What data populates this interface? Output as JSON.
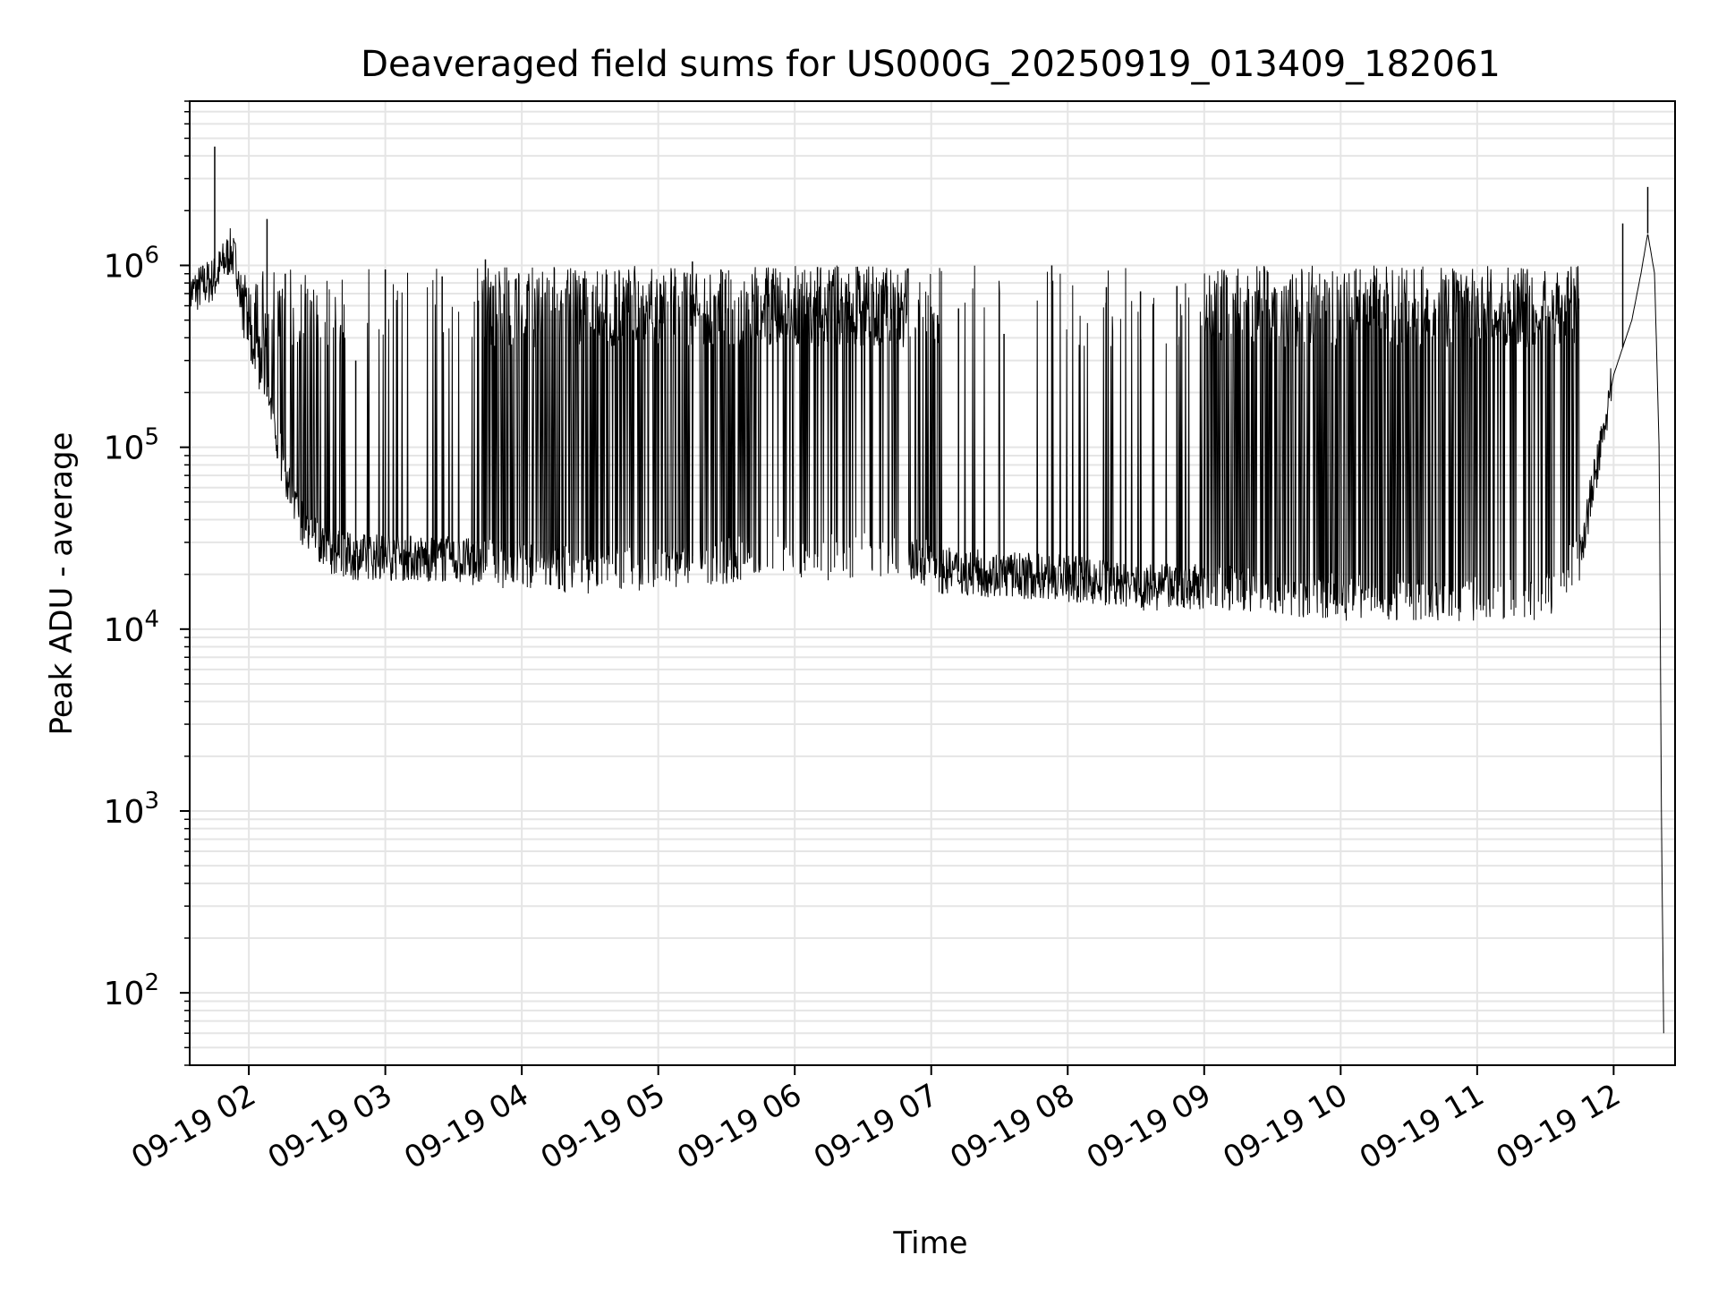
{
  "chart_data": {
    "type": "line",
    "title": "Deaveraged field sums for US000G_20250919_013409_182061",
    "xlabel": "Time",
    "ylabel": "Peak ADU - average",
    "yscale": "log",
    "ylim": [
      40,
      8000000
    ],
    "xlim": [
      "09-19 01:34",
      "09-19 12:27"
    ],
    "grid": true,
    "line_color": "#000000",
    "grid_color": "#e5e5e5",
    "x_ticks": [
      {
        "t": "09-19 02:00",
        "label": "09-19 02"
      },
      {
        "t": "09-19 03:00",
        "label": "09-19 03"
      },
      {
        "t": "09-19 04:00",
        "label": "09-19 04"
      },
      {
        "t": "09-19 05:00",
        "label": "09-19 05"
      },
      {
        "t": "09-19 06:00",
        "label": "09-19 06"
      },
      {
        "t": "09-19 07:00",
        "label": "09-19 07"
      },
      {
        "t": "09-19 08:00",
        "label": "09-19 08"
      },
      {
        "t": "09-19 09:00",
        "label": "09-19 09"
      },
      {
        "t": "09-19 10:00",
        "label": "09-19 10"
      },
      {
        "t": "09-19 11:00",
        "label": "09-19 11"
      },
      {
        "t": "09-19 12:00",
        "label": "09-19 12"
      }
    ],
    "y_ticks": [
      {
        "value": 100,
        "base": "10",
        "exp": "2"
      },
      {
        "value": 1000,
        "base": "10",
        "exp": "3"
      },
      {
        "value": 10000,
        "base": "10",
        "exp": "4"
      },
      {
        "value": 100000,
        "base": "10",
        "exp": "5"
      },
      {
        "value": 1000000,
        "base": "10",
        "exp": "6"
      }
    ],
    "series": [
      {
        "baseline": {
          "x": [
            "09-19 01:34",
            "09-19 01:40",
            "09-19 01:45",
            "09-19 01:52",
            "09-19 01:56",
            "09-19 02:00",
            "09-19 02:06",
            "09-19 02:12",
            "09-19 02:18",
            "09-19 02:25",
            "09-19 02:35",
            "09-19 02:45",
            "09-19 03:00",
            "09-19 03:30",
            "09-19 04:00",
            "09-19 04:30",
            "09-19 05:00",
            "09-19 05:30",
            "09-19 06:00",
            "09-19 06:30",
            "09-19 06:55",
            "09-19 07:05",
            "09-19 07:30",
            "09-19 08:00",
            "09-19 08:30",
            "09-19 09:00",
            "09-19 09:30",
            "09-19 10:00",
            "09-19 10:30",
            "09-19 11:00",
            "09-19 11:30",
            "09-19 11:45",
            "09-19 11:55",
            "09-19 12:00",
            "09-19 12:08",
            "09-19 12:12",
            "09-19 12:15",
            "09-19 12:18",
            "09-19 12:20",
            "09-19 12:21",
            "09-19 12:22"
          ],
          "y": [
            700000,
            780000,
            850000,
            1200000,
            900000,
            400000,
            250000,
            110000,
            60000,
            35000,
            27000,
            25000,
            25000,
            24000,
            22000,
            21000,
            22000,
            24000,
            25000,
            25000,
            24000,
            21000,
            20000,
            19000,
            17000,
            17000,
            16000,
            15000,
            15000,
            14500,
            15000,
            25000,
            110000,
            250000,
            500000,
            900000,
            1500000,
            900000,
            100000,
            1000,
            60
          ]
        },
        "spikes": [
          {
            "x": "09-19 01:45",
            "y": 4500000
          },
          {
            "x": "09-19 02:08",
            "y": 1800000
          },
          {
            "x": "09-19 02:16",
            "y": 900000
          },
          {
            "x": "09-19 02:25",
            "y": 700000
          },
          {
            "x": "09-19 02:38",
            "y": 500000
          },
          {
            "x": "09-19 02:47",
            "y": 300000
          },
          {
            "x": "09-19 03:00",
            "y": 950000
          },
          {
            "x": "09-19 03:25",
            "y": 870000
          },
          {
            "x": "09-19 03:44",
            "y": 1080000
          },
          {
            "x": "09-19 05:15",
            "y": 1050000
          },
          {
            "x": "09-19 06:10",
            "y": 980000
          },
          {
            "x": "09-19 07:12",
            "y": 580000
          },
          {
            "x": "09-19 07:32",
            "y": 420000
          },
          {
            "x": "09-19 07:53",
            "y": 1000000
          },
          {
            "x": "09-19 08:17",
            "y": 760000
          },
          {
            "x": "09-19 08:32",
            "y": 720000
          },
          {
            "x": "09-19 08:48",
            "y": 770000
          },
          {
            "x": "09-19 09:10",
            "y": 860000
          },
          {
            "x": "09-19 10:15",
            "y": 880000
          },
          {
            "x": "09-19 11:05",
            "y": 640000
          },
          {
            "x": "09-19 11:40",
            "y": 930000
          },
          {
            "x": "09-19 12:04",
            "y": 1700000
          },
          {
            "x": "09-19 12:15",
            "y": 2700000
          }
        ]
      }
    ]
  }
}
